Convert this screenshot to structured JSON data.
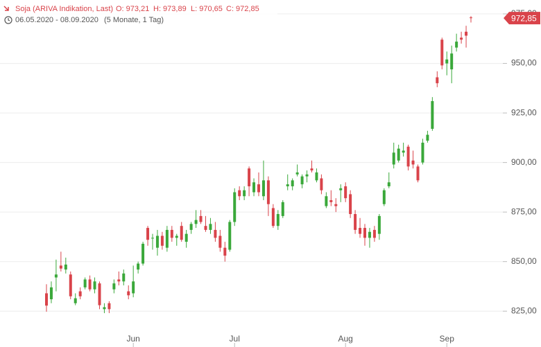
{
  "header": {
    "name": "Soja (ARIVA Indikation, Last)",
    "ohlc": [
      "O: 973,21",
      "H: 973,89",
      "L: 970,65",
      "C: 972,85"
    ],
    "range": "06.05.2020 - 08.09.2020",
    "duration": "(5 Monate, 1 Tag)"
  },
  "chart_data": {
    "type": "candlestick",
    "categories": [
      null,
      null,
      null,
      null,
      null,
      null,
      null,
      null,
      null,
      null,
      null,
      null,
      null,
      null,
      null,
      null,
      null,
      null,
      "Jun",
      null,
      null,
      null,
      null,
      null,
      null,
      null,
      null,
      null,
      null,
      null,
      null,
      null,
      null,
      null,
      null,
      null,
      null,
      null,
      null,
      "Jul",
      null,
      null,
      null,
      null,
      null,
      null,
      null,
      null,
      null,
      null,
      null,
      null,
      null,
      null,
      null,
      null,
      null,
      null,
      null,
      null,
      null,
      null,
      "Aug",
      null,
      null,
      null,
      null,
      null,
      null,
      null,
      null,
      null,
      null,
      null,
      null,
      null,
      null,
      null,
      null,
      null,
      null,
      null,
      null,
      "Sep",
      null,
      null,
      null,
      null,
      null
    ],
    "open": [
      834,
      831,
      842,
      848,
      846,
      843.5,
      829,
      835,
      837,
      841,
      836,
      839,
      826,
      829,
      836,
      841,
      840,
      835,
      834,
      846,
      849,
      867,
      862,
      857,
      863,
      857,
      866,
      862,
      868,
      860,
      866,
      869,
      873,
      868,
      866,
      866,
      863,
      857,
      856,
      870,
      886,
      883,
      897,
      885,
      889,
      883,
      891,
      877,
      868,
      873,
      888,
      888,
      894,
      889,
      893,
      897,
      891,
      892,
      878,
      881,
      879,
      886,
      888,
      884,
      874,
      867,
      867,
      862,
      866,
      864,
      879,
      888,
      899,
      901,
      905,
      908,
      901,
      898,
      900,
      911,
      917,
      943,
      962,
      950,
      947,
      958,
      963,
      966,
      973.21
    ],
    "high": [
      838.6,
      840,
      851,
      855,
      852,
      845,
      834,
      837,
      842,
      843,
      842,
      840,
      829,
      830,
      841,
      845,
      846,
      838,
      848,
      850,
      860,
      868,
      864,
      866,
      865,
      868,
      868,
      864,
      870,
      866,
      870,
      876,
      876,
      873,
      872,
      870,
      866,
      860,
      871,
      887,
      888,
      888,
      898,
      892,
      895,
      901,
      893,
      879,
      876,
      881,
      894,
      892,
      899,
      894,
      896,
      901,
      897,
      894,
      885,
      886,
      882,
      889,
      890,
      886,
      876,
      872,
      869,
      867,
      868,
      874,
      887,
      895,
      910,
      909,
      910,
      909,
      906,
      899,
      912,
      916,
      933,
      946,
      963,
      956,
      959,
      965,
      966,
      969,
      973.89
    ],
    "low": [
      824.7,
      829,
      835,
      845,
      844,
      831,
      828,
      831,
      836,
      835,
      834,
      826,
      824,
      824,
      834,
      838,
      838,
      831,
      832,
      844,
      848,
      858,
      856,
      853,
      856,
      855,
      860,
      858,
      860,
      857,
      864,
      867,
      869,
      865,
      864,
      860,
      855,
      850,
      855,
      868,
      881,
      881,
      883,
      883,
      883,
      881,
      873,
      867,
      866,
      872,
      886,
      886,
      893,
      887,
      890,
      895,
      890,
      884,
      877,
      878,
      875,
      880,
      880,
      872,
      864,
      862,
      858,
      857,
      860,
      861,
      878,
      887,
      897,
      900,
      903,
      896,
      897,
      890,
      899,
      910,
      916,
      938,
      947,
      944,
      940,
      956,
      960,
      958,
      970.65
    ],
    "close": [
      827.8,
      837,
      843.5,
      846.5,
      848.5,
      832.5,
      831.5,
      832.5,
      841,
      836,
      840,
      828,
      827,
      826,
      839,
      840,
      844,
      833,
      840,
      849,
      859,
      861,
      862,
      863,
      858,
      866,
      862,
      863,
      861,
      864,
      869,
      871,
      870,
      866,
      869,
      862,
      857,
      853,
      870,
      885,
      883,
      886,
      888,
      890,
      885,
      891,
      879,
      868,
      874,
      880,
      889,
      891,
      895,
      893,
      894,
      896,
      895,
      886,
      883,
      880,
      878,
      887,
      882,
      874,
      866,
      864,
      862,
      865,
      862,
      873,
      886,
      890,
      905,
      907,
      906,
      898,
      899,
      891,
      910,
      914,
      931,
      940,
      949,
      952,
      955,
      961,
      962,
      964,
      972.85
    ],
    "last_price": {
      "value": 972.85,
      "label": "972,85"
    },
    "up_color": "#3aa83a",
    "down_color": "#d9434a",
    "ylim": [
      812.5,
      982
    ],
    "yticks": [
      {
        "value": 825,
        "label": "825,00"
      },
      {
        "value": 850,
        "label": "850,00"
      },
      {
        "value": 875,
        "label": "875,00"
      },
      {
        "value": 900,
        "label": "900,00"
      },
      {
        "value": 925,
        "label": "925,00"
      },
      {
        "value": 950,
        "label": "950,00"
      },
      {
        "value": 975,
        "label": "975,00"
      }
    ],
    "grid": true
  }
}
